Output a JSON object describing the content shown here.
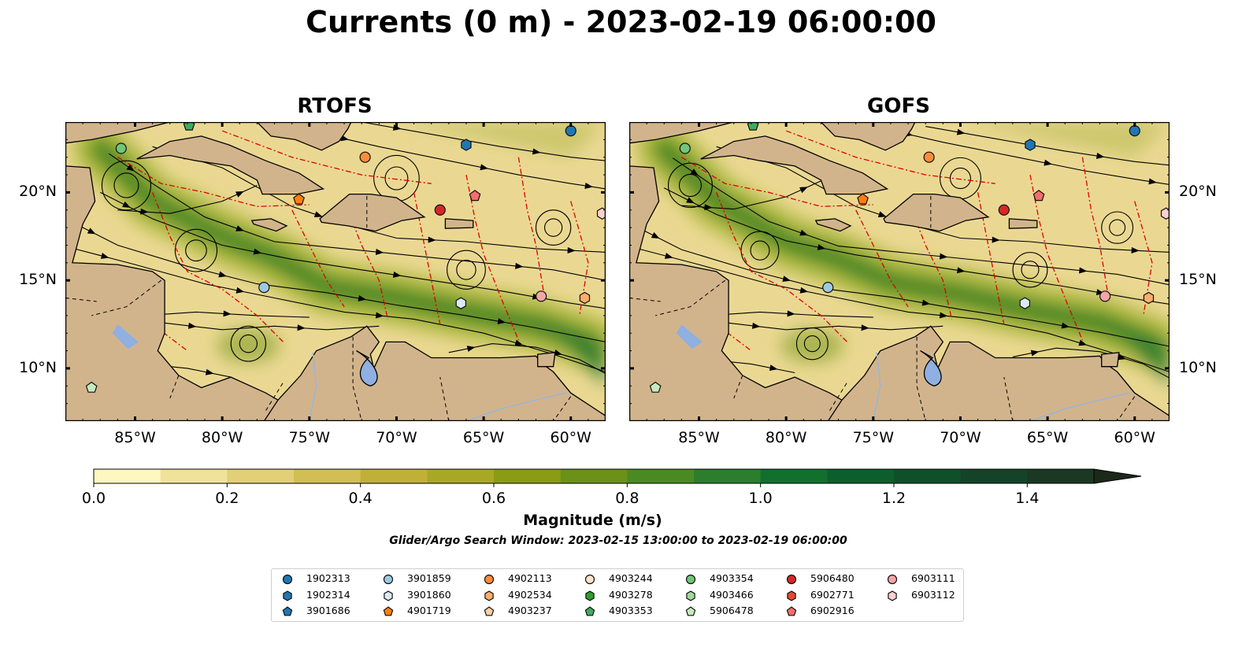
{
  "title": "Currents (0 m) - 2023-02-19 06:00:00",
  "panels": [
    {
      "title": "RTOFS"
    },
    {
      "title": "GOFS"
    }
  ],
  "map_axes": {
    "lon_ticks": [
      "85°W",
      "80°W",
      "75°W",
      "70°W",
      "65°W",
      "60°W"
    ],
    "lat_ticks": [
      "20°N",
      "15°N",
      "10°N"
    ],
    "lon_range": [
      -89,
      -58
    ],
    "lat_range": [
      7,
      24
    ]
  },
  "colorbar": {
    "label": "Magnitude (m/s)",
    "ticks": [
      "0.0",
      "0.2",
      "0.4",
      "0.6",
      "0.8",
      "1.0",
      "1.2",
      "1.4"
    ],
    "range": [
      0,
      1.5
    ],
    "extend": "max"
  },
  "search_window": "Glider/Argo Search Window: 2023-02-15 13:00:00 to 2023-02-19 06:00:00",
  "colors": {
    "land": "#d2b48c",
    "lake": "#8fb0e0",
    "eez_boundary": "#e00000",
    "streamline": "#000000"
  },
  "legend": [
    [
      {
        "id": "1902313",
        "color": "#1f77b4",
        "marker": "circle"
      },
      {
        "id": "1902314",
        "color": "#1f77b4",
        "marker": "hexagon"
      },
      {
        "id": "3901686",
        "color": "#1f77b4",
        "marker": "pentagon"
      }
    ],
    [
      {
        "id": "3901859",
        "color": "#9ecae1",
        "marker": "circle"
      },
      {
        "id": "3901860",
        "color": "#dbe9f6",
        "marker": "hexagon"
      },
      {
        "id": "4901719",
        "color": "#ff7f0e",
        "marker": "pentagon"
      }
    ],
    [
      {
        "id": "4902113",
        "color": "#fd8d3c",
        "marker": "circle"
      },
      {
        "id": "4902534",
        "color": "#fdae6b",
        "marker": "hexagon"
      },
      {
        "id": "4903237",
        "color": "#fdd0a2",
        "marker": "pentagon"
      }
    ],
    [
      {
        "id": "4903244",
        "color": "#fde3c8",
        "marker": "circle"
      },
      {
        "id": "4903278",
        "color": "#2ca02c",
        "marker": "hexagon"
      },
      {
        "id": "4903353",
        "color": "#41ab5d",
        "marker": "pentagon"
      }
    ],
    [
      {
        "id": "4903354",
        "color": "#74c476",
        "marker": "circle"
      },
      {
        "id": "4903466",
        "color": "#a1d99b",
        "marker": "hexagon"
      },
      {
        "id": "5906478",
        "color": "#c7e9c0",
        "marker": "pentagon"
      }
    ],
    [
      {
        "id": "5906480",
        "color": "#d62728",
        "marker": "circle"
      },
      {
        "id": "6902771",
        "color": "#e34a33",
        "marker": "hexagon"
      },
      {
        "id": "6902916",
        "color": "#f46d6d",
        "marker": "pentagon"
      }
    ],
    [
      {
        "id": "6903111",
        "color": "#f4a6a6",
        "marker": "circle"
      },
      {
        "id": "6903112",
        "color": "#fbd0d0",
        "marker": "hexagon"
      }
    ]
  ],
  "floats_on_map": [
    {
      "lon": -85.8,
      "lat": 22.5,
      "color": "#74c476",
      "marker": "circle"
    },
    {
      "lon": -81.9,
      "lat": 23.8,
      "color": "#41ab5d",
      "marker": "pentagon"
    },
    {
      "lon": -60.0,
      "lat": 23.5,
      "color": "#1f77b4",
      "marker": "circle"
    },
    {
      "lon": -66.0,
      "lat": 22.7,
      "color": "#1f77b4",
      "marker": "hexagon"
    },
    {
      "lon": -71.8,
      "lat": 22.0,
      "color": "#fd8d3c",
      "marker": "circle"
    },
    {
      "lon": -75.6,
      "lat": 19.6,
      "color": "#ff7f0e",
      "marker": "pentagon"
    },
    {
      "lon": -65.5,
      "lat": 19.8,
      "color": "#f46d6d",
      "marker": "pentagon"
    },
    {
      "lon": -67.5,
      "lat": 19.0,
      "color": "#d62728",
      "marker": "circle"
    },
    {
      "lon": -58.2,
      "lat": 18.8,
      "color": "#fbd0d0",
      "marker": "hexagon"
    },
    {
      "lon": -77.6,
      "lat": 14.6,
      "color": "#9ecae1",
      "marker": "circle"
    },
    {
      "lon": -66.3,
      "lat": 13.7,
      "color": "#dbe9f6",
      "marker": "hexagon"
    },
    {
      "lon": -61.7,
      "lat": 14.1,
      "color": "#f4a6a6",
      "marker": "circle"
    },
    {
      "lon": -59.2,
      "lat": 14.0,
      "color": "#fdae6b",
      "marker": "hexagon"
    },
    {
      "lon": -87.5,
      "lat": 8.9,
      "color": "#c7e9c0",
      "marker": "pentagon"
    }
  ]
}
